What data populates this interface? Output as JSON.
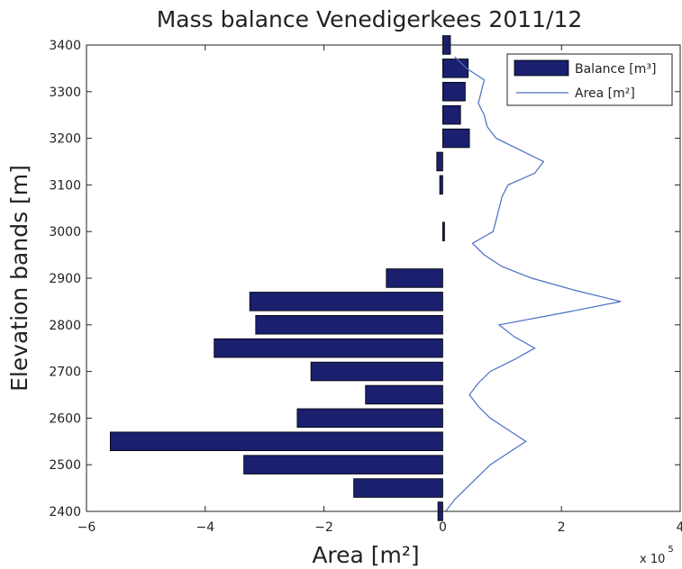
{
  "chart_data": {
    "type": "bar",
    "orientation": "horizontal",
    "title": "Mass balance Venedigerkees 2011/12",
    "xlabel": "Area [m²]",
    "ylabel": "Elevation bands [m]",
    "x_multiplier_label": "x 10",
    "x_multiplier_exponent": "5",
    "xlim": [
      -600000,
      400000
    ],
    "ylim": [
      2400,
      3400
    ],
    "x_ticks": [
      -600000,
      -400000,
      -200000,
      0,
      200000,
      400000
    ],
    "x_tick_labels": [
      "−6",
      "−4",
      "−2",
      "0",
      "2",
      "4"
    ],
    "y_ticks": [
      2400,
      2500,
      2600,
      2700,
      2800,
      2900,
      3000,
      3100,
      3200,
      3300,
      3400
    ],
    "y_tick_labels": [
      "2400",
      "2500",
      "2600",
      "2700",
      "2800",
      "2900",
      "3000",
      "3100",
      "3200",
      "3300",
      "3400"
    ],
    "legend_position": "top-right",
    "series": [
      {
        "name": "Balance [m³]",
        "type": "bar",
        "color": "#1a1f6e",
        "y": [
          2400,
          2450,
          2500,
          2550,
          2600,
          2650,
          2700,
          2750,
          2800,
          2850,
          2900,
          2950,
          3000,
          3050,
          3100,
          3150,
          3200,
          3250,
          3300,
          3350,
          3400
        ],
        "values": [
          -8000,
          -150000,
          -335000,
          -560000,
          -245000,
          -130000,
          -222000,
          -385000,
          -315000,
          -325000,
          -95000,
          0,
          3000,
          0,
          -5000,
          -10000,
          45000,
          30000,
          38000,
          43000,
          13000
        ]
      },
      {
        "name": "Area [m²]",
        "type": "line",
        "color": "#4a6fc2",
        "y": [
          2400,
          2425,
          2450,
          2475,
          2500,
          2525,
          2550,
          2575,
          2600,
          2625,
          2650,
          2675,
          2700,
          2725,
          2750,
          2775,
          2800,
          2825,
          2850,
          2875,
          2900,
          2925,
          2950,
          2975,
          3000,
          3025,
          3050,
          3075,
          3100,
          3125,
          3150,
          3175,
          3200,
          3225,
          3250,
          3275,
          3300,
          3325,
          3350,
          3375
        ],
        "values": [
          5000,
          20000,
          40000,
          60000,
          80000,
          110000,
          140000,
          110000,
          80000,
          60000,
          45000,
          60000,
          80000,
          120000,
          155000,
          120000,
          95000,
          200000,
          300000,
          220000,
          150000,
          100000,
          70000,
          50000,
          85000,
          90000,
          95000,
          100000,
          110000,
          155000,
          170000,
          130000,
          90000,
          75000,
          70000,
          60000,
          65000,
          70000,
          40000,
          20000
        ]
      }
    ]
  }
}
